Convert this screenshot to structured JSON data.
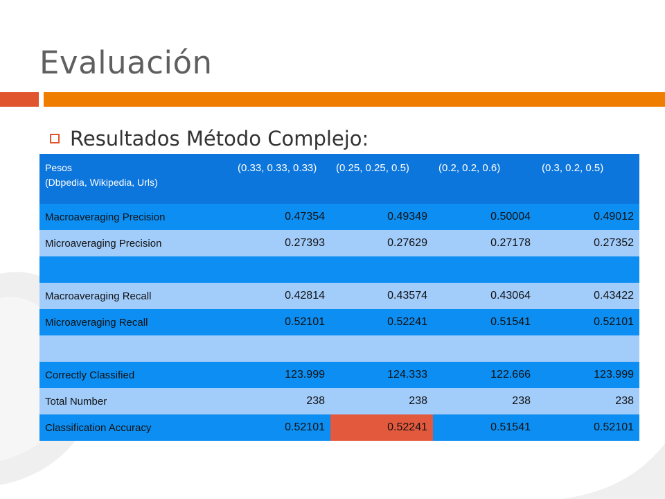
{
  "slide": {
    "title": "Evaluación",
    "bullet": "Resultados Método Complejo:"
  },
  "colors": {
    "title_gray": "#5f5f5f",
    "accent_red": "#e0552e",
    "accent_orange": "#ef7d00",
    "header_blue": "#0d76dc",
    "row_dark_blue": "#0c8ef2",
    "row_light_blue": "#a2ccfa",
    "highlight_red": "#e2593d"
  },
  "table": {
    "header": {
      "label_line1": "Pesos",
      "label_line2": "(Dbpedia, Wikipedia, Urls)",
      "columns": [
        "(0.33, 0.33, 0.33)",
        "(0.25, 0.25, 0.5)",
        "(0.2, 0.2, 0.6)",
        "(0.3, 0.2, 0.5)"
      ]
    },
    "rows": [
      {
        "label": "Macroaveraging Precision",
        "values": [
          "0.47354",
          "0.49349",
          "0.50004",
          "0.49012"
        ]
      },
      {
        "label": "Microaveraging Precision",
        "values": [
          "0.27393",
          "0.27629",
          "0.27178",
          "0.27352"
        ]
      },
      {
        "label": "",
        "values": [
          "",
          "",
          "",
          ""
        ]
      },
      {
        "label": "Macroaveraging Recall",
        "values": [
          "0.42814",
          "0.43574",
          "0.43064",
          "0.43422"
        ]
      },
      {
        "label": "Microaveraging Recall",
        "values": [
          "0.52101",
          "0.52241",
          "0.51541",
          "0.52101"
        ]
      },
      {
        "label": "",
        "values": [
          "",
          "",
          "",
          ""
        ]
      },
      {
        "label": "Correctly Classified",
        "values": [
          "123.999",
          "124.333",
          "122.666",
          "123.999"
        ]
      },
      {
        "label": "Total Number",
        "values": [
          "238",
          "238",
          "238",
          "238"
        ]
      },
      {
        "label": "Classification Accuracy",
        "values": [
          "0.52101",
          "0.52241",
          "0.51541",
          "0.52101"
        ]
      }
    ]
  }
}
